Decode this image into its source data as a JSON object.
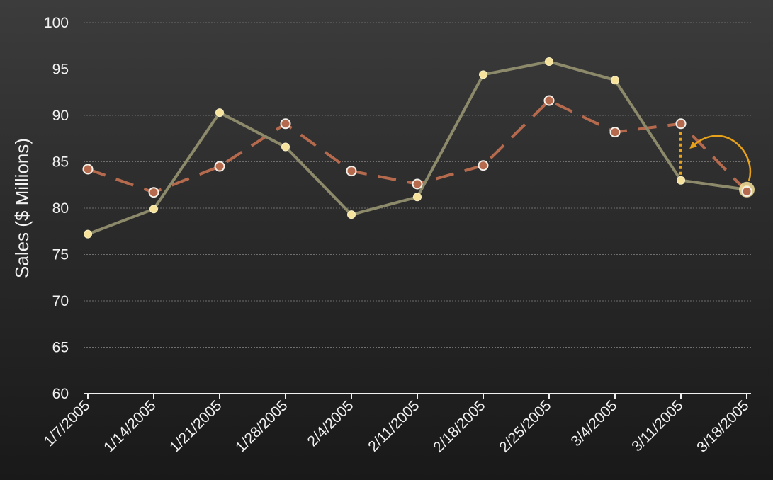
{
  "chart_data": {
    "type": "line",
    "title": "",
    "xlabel": "",
    "ylabel": "Sales  ($ Millions)",
    "ylim": [
      60,
      100
    ],
    "yticks": [
      60,
      65,
      70,
      75,
      80,
      85,
      90,
      95,
      100
    ],
    "grid": true,
    "legend": "none",
    "categories": [
      "1/7/2005",
      "1/14/2005",
      "1/21/2005",
      "1/28/2005",
      "2/4/2005",
      "2/11/2005",
      "2/18/2005",
      "2/25/2005",
      "3/4/2005",
      "3/11/2005",
      "3/18/2005"
    ],
    "series": [
      {
        "style": "solid",
        "color": "#8c8a6a",
        "marker_color": "#f6e29a",
        "values": [
          77.2,
          79.9,
          90.3,
          86.6,
          79.3,
          81.2,
          94.4,
          95.8,
          93.8,
          83.0,
          82.0
        ]
      },
      {
        "style": "dashed",
        "color": "#b56a4e",
        "marker_color": "#b56a4e",
        "values": [
          84.2,
          81.7,
          84.5,
          89.1,
          84.0,
          82.6,
          84.6,
          91.6,
          88.2,
          89.1,
          81.8
        ]
      }
    ],
    "annotations": [
      {
        "type": "dotted-vertical-arrow",
        "color": "#e8a21a",
        "category": "3/11/2005",
        "from_series": 0,
        "to_series": 1
      },
      {
        "type": "curved-arrow",
        "color": "#e8a21a",
        "from_category": "3/18/2005",
        "to_category": "3/11/2005"
      },
      {
        "type": "highlight-point",
        "color": "#f6e29a",
        "category": "3/18/2005",
        "series": 0
      }
    ]
  }
}
